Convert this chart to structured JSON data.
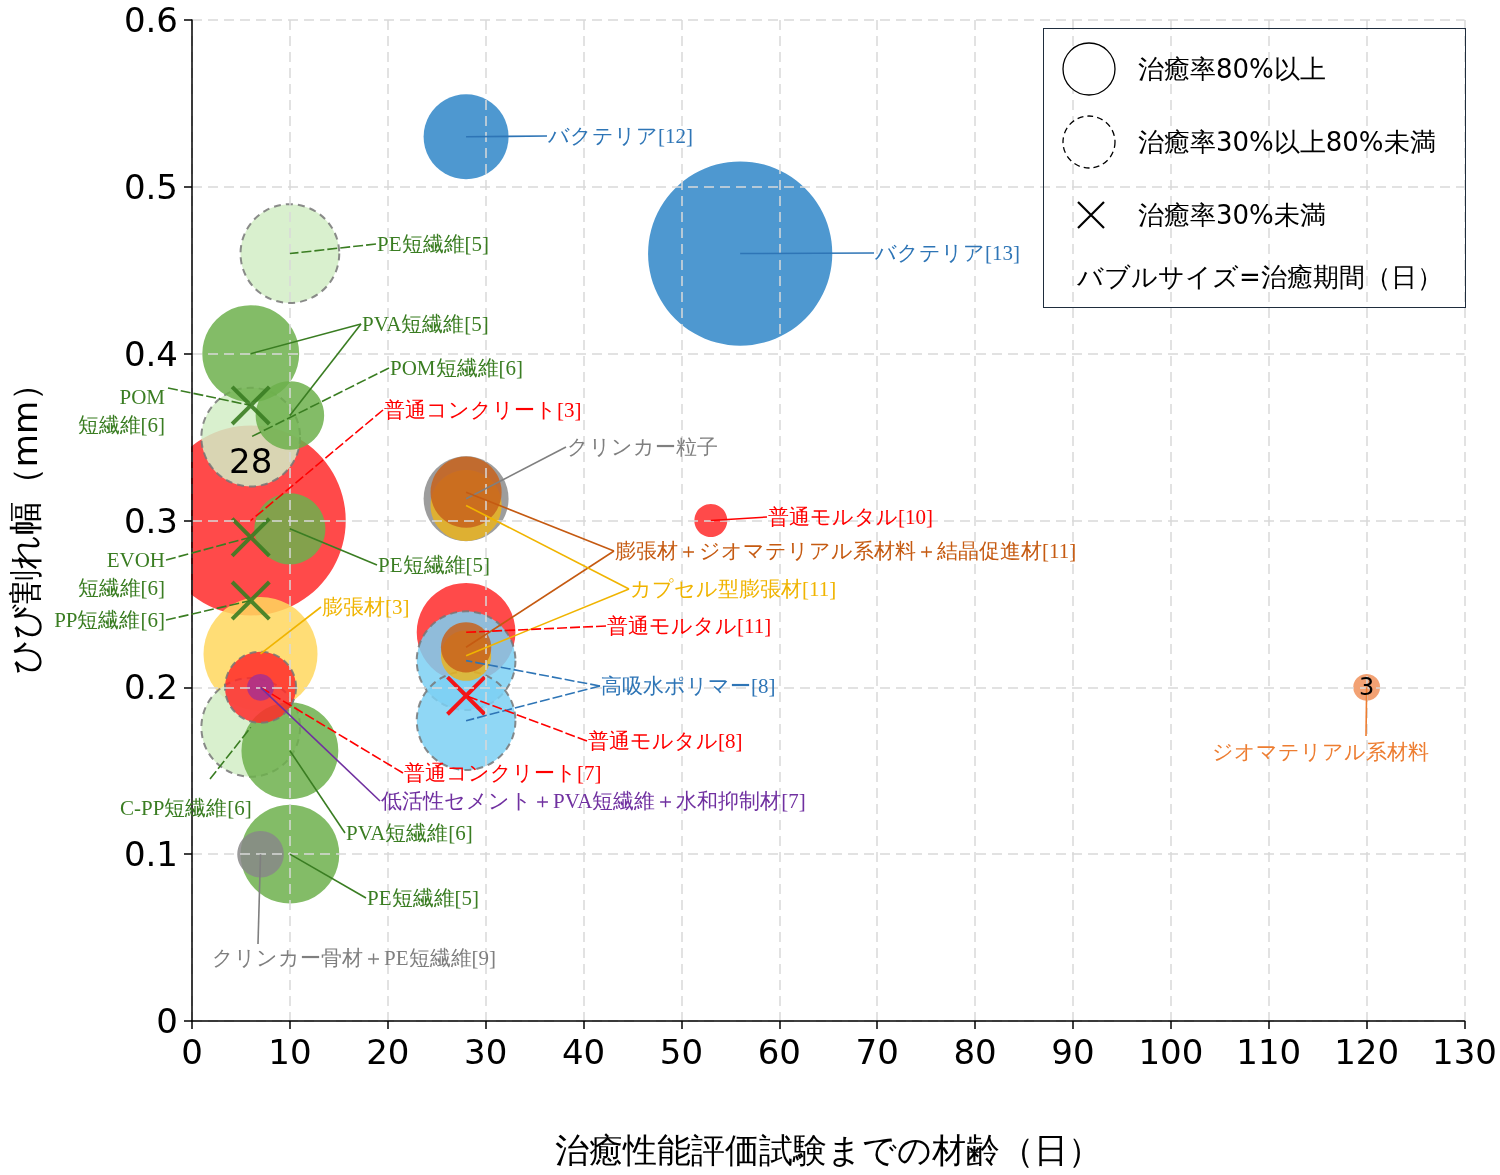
{
  "chart_data": {
    "type": "bubble",
    "xlabel": "治癒性能評価試験までの材齢（日）",
    "ylabel": "ひび割れ幅（mm）",
    "legend_title": "バブルサイズ=治癒期間（日）",
    "xlim": [
      0,
      130
    ],
    "xticks": [
      0,
      10,
      20,
      30,
      40,
      50,
      60,
      70,
      80,
      90,
      100,
      110,
      120,
      130
    ],
    "ylim": [
      0,
      0.6
    ],
    "yticks": [
      0,
      0.1,
      0.2,
      0.3,
      0.4,
      0.5,
      0.6
    ],
    "grid": true,
    "series": [
      {
        "marker": "circle",
        "line_style": "solid",
        "x": [
          6,
          56,
          28,
          6,
          10,
          10,
          7,
          10,
          10,
          7,
          28,
          28,
          28,
          28,
          28,
          28,
          53,
          120,
          7
        ],
        "values": [
          0.3,
          0.46,
          0.53,
          0.4,
          0.363,
          0.295,
          0.22,
          0.162,
          0.1,
          0.1,
          0.313,
          0.309,
          0.317,
          0.233,
          0.219,
          0.224,
          0.3,
          0.2,
          0.2
        ],
        "sizes": [
          1,
          0.94,
          0.2,
          0.26,
          0.13,
          0.14,
          0.36,
          0.26,
          0.27,
          0.06,
          0.2,
          0.14,
          0.14,
          0.27,
          0.07,
          0.07,
          0.03,
          0.02,
          0.02
        ],
        "colors": [
          "#ff2a2a",
          "#2f86c8",
          "#2f86c8",
          "#6db04c",
          "#6db04c",
          "#6db04c",
          "#ffd75e",
          "#6db04c",
          "#6db04c",
          "#888888",
          "#8c8c8c",
          "#eab420",
          "#c8631c",
          "#ff2a2a",
          "#eab420",
          "#c8631c",
          "#ff2a2a",
          "#f0915a",
          "#a8308e"
        ]
      },
      {
        "marker": "circle",
        "line_style": "dashed",
        "x": [
          10,
          6,
          6,
          7,
          28,
          28
        ],
        "values": [
          0.46,
          0.35,
          0.176,
          0.2,
          0.216,
          0.18
        ],
        "sizes": [
          0.27,
          0.27,
          0.27,
          0.14,
          0.27,
          0.27
        ],
        "colors": [
          "#d2edc6",
          "#d2edc6",
          "#d2edc6",
          "#ff2a2a",
          "#7dd0f3",
          "#7dd0f3"
        ]
      },
      {
        "type": "scatter",
        "marker": "cross",
        "x": [
          6,
          6,
          6,
          28
        ],
        "values": [
          0.369,
          0.29,
          0.252,
          0.195
        ],
        "colors": [
          "#3a7d22",
          "#3a7d22",
          "#3a7d22",
          "#ff0000"
        ]
      }
    ],
    "annotations": [
      {
        "text": "バクテリア[12]",
        "x": 28,
        "y": 0.53
      },
      {
        "text": "バクテリア[13]",
        "x": 56,
        "y": 0.46
      },
      {
        "text": "PE短繊維[5]",
        "x": 10,
        "y": 0.46
      },
      {
        "text": "PVA短繊維[5]",
        "x": 6,
        "y": 0.4
      },
      {
        "text": "POM短繊維[6]",
        "x": 6,
        "y": 0.35
      },
      {
        "text": "普通コンクリート[3]",
        "x": 6,
        "y": 0.3
      },
      {
        "text": "POM\n短繊維[6]",
        "x": 6,
        "y": 0.369
      },
      {
        "text": "クリンカー粒子",
        "x": 28,
        "y": 0.313
      },
      {
        "text": "普通モルタル[10]",
        "x": 53,
        "y": 0.3
      },
      {
        "text": "膨張材＋ジオマテリアル系材料＋結晶促進材[11]",
        "x": 28,
        "y": 0.317
      },
      {
        "text": "PE短繊維[5]",
        "x": 10,
        "y": 0.295
      },
      {
        "text": "EVOH\n短繊維[6]",
        "x": 6,
        "y": 0.29
      },
      {
        "text": "カプセル型膨張材[11]",
        "x": 28,
        "y": 0.309
      },
      {
        "text": "PP短繊維[6]",
        "x": 6,
        "y": 0.252
      },
      {
        "text": "膨張材[3]",
        "x": 7,
        "y": 0.22
      },
      {
        "text": "普通モルタル[11]",
        "x": 28,
        "y": 0.233
      },
      {
        "text": "高吸水ポリマー[8]",
        "x": 28,
        "y": 0.216
      },
      {
        "text": "普通モルタル[8]",
        "x": 28,
        "y": 0.195
      },
      {
        "text": "普通コンクリート[7]",
        "x": 7,
        "y": 0.2
      },
      {
        "text": "低活性セメント＋PVA短繊維＋水和抑制材[7]",
        "x": 7,
        "y": 0.2
      },
      {
        "text": "C-PP短繊維[6]",
        "x": 6,
        "y": 0.176
      },
      {
        "text": "PVA短繊維[6]",
        "x": 10,
        "y": 0.162
      },
      {
        "text": "PE短繊維[5]",
        "x": 10,
        "y": 0.1
      },
      {
        "text": "クリンカー骨材＋PE短繊維[9]",
        "x": 7,
        "y": 0.1
      },
      {
        "text": "ジオマテリアル系材料",
        "x": 120,
        "y": 0.2
      },
      {
        "text": "28",
        "x": 6,
        "y": 0.35
      },
      {
        "text": "3",
        "x": 120,
        "y": 0.2
      },
      "治癒率80%以上",
      "治癒率30%以上80%未満",
      "治癒率30%未満"
    ]
  }
}
